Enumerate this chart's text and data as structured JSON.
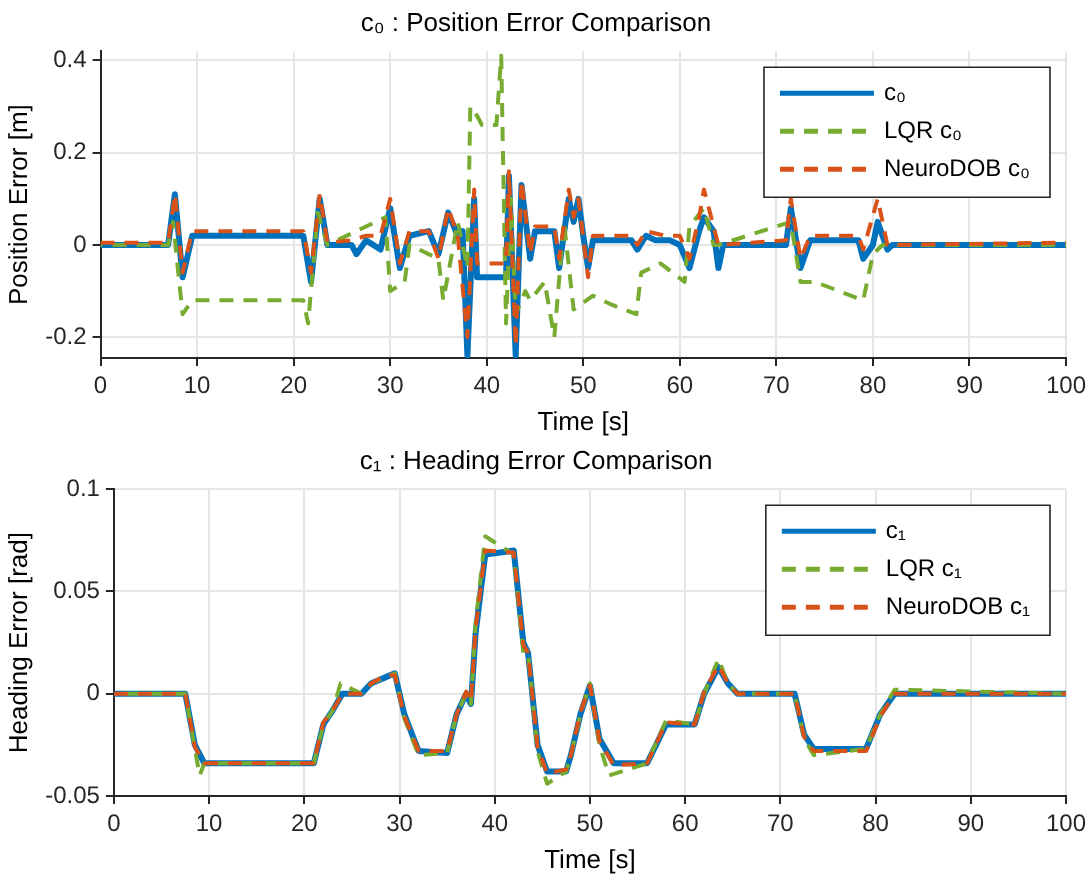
{
  "chart_data": [
    {
      "type": "line",
      "title": "c₀ : Position Error Comparison",
      "xlabel": "Time [s]",
      "ylabel": "Position Error [m]",
      "xlim": [
        0,
        100
      ],
      "xticks": [
        0,
        10,
        20,
        30,
        40,
        50,
        60,
        70,
        80,
        90,
        100
      ],
      "ylim": [
        -0.245,
        0.42
      ],
      "yticks": [
        -0.2,
        0,
        0.2,
        0.4
      ],
      "grid": true,
      "legend": "top right",
      "marker": "none",
      "series": [
        {
          "name": "c₀",
          "color": "#0072bd",
          "line_style": "solid",
          "x": [
            0,
            7,
            7.7,
            8.5,
            9.5,
            21,
            21.8,
            22.7,
            23.5,
            26,
            26.5,
            27.5,
            29,
            30,
            31,
            32,
            34,
            35,
            36,
            37,
            37.5,
            38,
            38.7,
            39,
            42,
            42.3,
            43,
            43.6,
            44.5,
            45,
            47,
            47.5,
            48.5,
            49,
            49.5,
            50,
            50.5,
            51,
            55,
            55.6,
            56.5,
            57.5,
            59,
            60,
            61,
            62,
            62.5,
            63.5,
            64,
            64.5,
            71,
            71.5,
            72.5,
            73.5,
            78.5,
            79,
            80,
            80.5,
            81.5,
            82,
            100
          ],
          "values": [
            0,
            0,
            0.11,
            -0.07,
            0.02,
            0.02,
            -0.08,
            0.1,
            0,
            0,
            -0.02,
            0.01,
            -0.01,
            0.08,
            -0.05,
            0.02,
            0.03,
            -0.02,
            0.07,
            0.02,
            0.03,
            -0.24,
            0.1,
            -0.07,
            -0.07,
            0.15,
            -0.24,
            0.13,
            -0.03,
            0.03,
            0.03,
            -0.05,
            0.1,
            0.05,
            0.1,
            0.02,
            -0.05,
            0.01,
            0.01,
            -0.01,
            0.02,
            0.01,
            0.01,
            0,
            -0.05,
            0.03,
            0.06,
            0.03,
            -0.05,
            0,
            0,
            0.08,
            -0.05,
            0.01,
            0.01,
            -0.03,
            0,
            0.05,
            -0.01,
            0,
            0
          ]
        },
        {
          "name": "LQR c₀",
          "color": "#77ac30",
          "line_style": "dashed",
          "x": [
            0,
            7,
            7.5,
            8.5,
            9.5,
            21,
            21.5,
            22.5,
            23.5,
            29.5,
            30,
            31.5,
            32,
            35,
            35.5,
            37,
            38,
            38.3,
            39,
            39.5,
            41,
            41.5,
            42,
            42.5,
            43,
            44,
            44.5,
            46,
            47,
            48,
            49,
            51,
            53,
            55.5,
            56,
            58,
            60.5,
            61,
            62.5,
            63.5,
            64,
            71.5,
            72.5,
            74,
            79,
            80,
            81,
            100
          ],
          "values": [
            0,
            0,
            0.05,
            -0.15,
            -0.12,
            -0.12,
            -0.17,
            0.07,
            0,
            0.06,
            -0.1,
            -0.08,
            0,
            -0.03,
            -0.12,
            0.05,
            -0.05,
            0.3,
            0.28,
            0.26,
            0.26,
            0.41,
            -0.17,
            0.1,
            -0.15,
            -0.1,
            -0.12,
            -0.08,
            -0.2,
            0.05,
            -0.14,
            -0.11,
            -0.13,
            -0.15,
            -0.06,
            -0.04,
            -0.08,
            0.04,
            0.08,
            0,
            0,
            0.05,
            -0.08,
            -0.08,
            -0.12,
            -0.02,
            0,
            0
          ]
        },
        {
          "name": "NeuroDOB c₀",
          "color": "#d95319",
          "line_style": "dashed",
          "x": [
            0,
            7,
            7.7,
            8.5,
            9.5,
            21,
            21.8,
            22.7,
            23.5,
            26,
            27.5,
            29,
            30,
            31,
            32,
            34,
            35,
            36,
            37,
            38,
            38.7,
            39,
            42,
            42.3,
            43,
            43.6,
            44.5,
            45,
            47,
            47.5,
            48.5,
            49,
            49.5,
            50.5,
            51,
            55,
            55.6,
            56.5,
            58.5,
            60,
            61,
            62,
            62.5,
            63.5,
            64,
            71,
            71.5,
            72.5,
            73.5,
            78.5,
            79,
            80.5,
            81.5,
            100
          ],
          "values": [
            0.005,
            0.005,
            0.11,
            -0.06,
            0.03,
            0.03,
            -0.06,
            0.11,
            0.005,
            0.01,
            0.02,
            0.02,
            0.1,
            -0.04,
            0.03,
            0.03,
            -0.03,
            0.08,
            0.02,
            -0.2,
            0.12,
            -0.04,
            -0.04,
            0.16,
            -0.22,
            0.14,
            -0.02,
            0.04,
            0.04,
            -0.03,
            0.12,
            0.06,
            0.1,
            -0.07,
            0.02,
            0.02,
            0,
            0.03,
            0.02,
            0.02,
            -0.03,
            0.06,
            0.12,
            0.04,
            0,
            0.01,
            0.1,
            -0.03,
            0.02,
            0.02,
            -0.01,
            0.1,
            0,
            0.005
          ]
        }
      ]
    },
    {
      "type": "line",
      "title": "c₁ : Heading Error Comparison",
      "xlabel": "Time [s]",
      "ylabel": "Heading Error [rad]",
      "xlim": [
        0,
        100
      ],
      "xticks": [
        0,
        10,
        20,
        30,
        40,
        50,
        60,
        70,
        80,
        90,
        100
      ],
      "ylim": [
        -0.05,
        0.1
      ],
      "yticks": [
        -0.05,
        0,
        0.05,
        0.1
      ],
      "grid": true,
      "legend": "top right",
      "marker": "none",
      "series": [
        {
          "name": "c₁",
          "color": "#0072bd",
          "line_style": "solid",
          "x": [
            0,
            7,
            7.5,
            8.5,
            9.5,
            21,
            22,
            23,
            24,
            26,
            27,
            28.5,
            29.5,
            30.5,
            32,
            35,
            36,
            37,
            37.5,
            38,
            39,
            42,
            43,
            43.5,
            44.5,
            45.5,
            47.5,
            48,
            49,
            50,
            51,
            52.5,
            56,
            58,
            61,
            62,
            63.5,
            64.5,
            65.5,
            71.5,
            72.5,
            73.5,
            79,
            80.5,
            82,
            100
          ],
          "values": [
            0,
            0,
            0,
            -0.025,
            -0.034,
            -0.034,
            -0.015,
            -0.008,
            0,
            0,
            0.005,
            0.008,
            0.01,
            -0.01,
            -0.028,
            -0.029,
            -0.01,
            0,
            -0.005,
            0.03,
            0.068,
            0.07,
            0.025,
            0.02,
            -0.025,
            -0.038,
            -0.038,
            -0.03,
            -0.01,
            0.004,
            -0.022,
            -0.034,
            -0.034,
            -0.015,
            -0.015,
            0,
            0.013,
            0.005,
            0,
            0,
            -0.02,
            -0.027,
            -0.027,
            -0.01,
            0,
            0
          ]
        },
        {
          "name": "LQR c₁",
          "color": "#77ac30",
          "line_style": "dashed",
          "x": [
            0,
            7,
            7.5,
            9,
            9.5,
            21,
            22,
            23,
            23.8,
            26,
            27,
            28.5,
            29.5,
            30.5,
            32,
            35,
            36,
            37,
            37.5,
            38,
            39,
            42,
            43,
            43.5,
            44.5,
            45.5,
            47.5,
            48,
            49,
            50,
            51,
            52,
            56,
            58,
            61,
            62,
            63.5,
            64.5,
            65.5,
            71.5,
            72.5,
            73.5,
            79,
            80.5,
            82,
            100
          ],
          "values": [
            0,
            0,
            0,
            -0.04,
            -0.034,
            -0.034,
            -0.015,
            -0.008,
            0.005,
            0,
            0.005,
            0.008,
            0.01,
            -0.012,
            -0.03,
            -0.029,
            -0.01,
            0,
            -0.005,
            0.035,
            0.077,
            0.068,
            0.02,
            0.02,
            -0.028,
            -0.044,
            -0.038,
            -0.03,
            -0.01,
            0.005,
            -0.025,
            -0.04,
            -0.034,
            -0.013,
            -0.015,
            0,
            0.017,
            0.005,
            0,
            0,
            -0.022,
            -0.03,
            -0.027,
            -0.01,
            0.002,
            0
          ]
        },
        {
          "name": "NeuroDOB c₁",
          "color": "#d95319",
          "line_style": "dashed",
          "x": [
            0,
            7,
            7.5,
            8.5,
            9.5,
            21,
            22,
            23,
            24,
            26,
            27,
            28.5,
            29.5,
            30.5,
            32,
            35,
            36,
            37,
            37.5,
            38,
            39,
            42,
            43,
            43.5,
            44.5,
            45.5,
            47.5,
            48,
            49,
            50,
            51,
            52.5,
            56,
            58,
            61,
            62,
            63.5,
            64.5,
            65.5,
            71.5,
            72.5,
            73.5,
            79,
            80.5,
            82,
            100
          ],
          "values": [
            0,
            0,
            0,
            -0.026,
            -0.034,
            -0.034,
            -0.014,
            -0.008,
            0,
            0,
            0.005,
            0.009,
            0.009,
            -0.011,
            -0.028,
            -0.028,
            -0.01,
            0.001,
            -0.004,
            0.032,
            0.07,
            0.069,
            0.024,
            0.02,
            -0.026,
            -0.039,
            -0.037,
            -0.03,
            -0.009,
            0.004,
            -0.023,
            -0.035,
            -0.034,
            -0.014,
            -0.015,
            0.001,
            0.014,
            0.005,
            0,
            0,
            -0.021,
            -0.028,
            -0.028,
            -0.011,
            0,
            0
          ]
        }
      ]
    }
  ]
}
